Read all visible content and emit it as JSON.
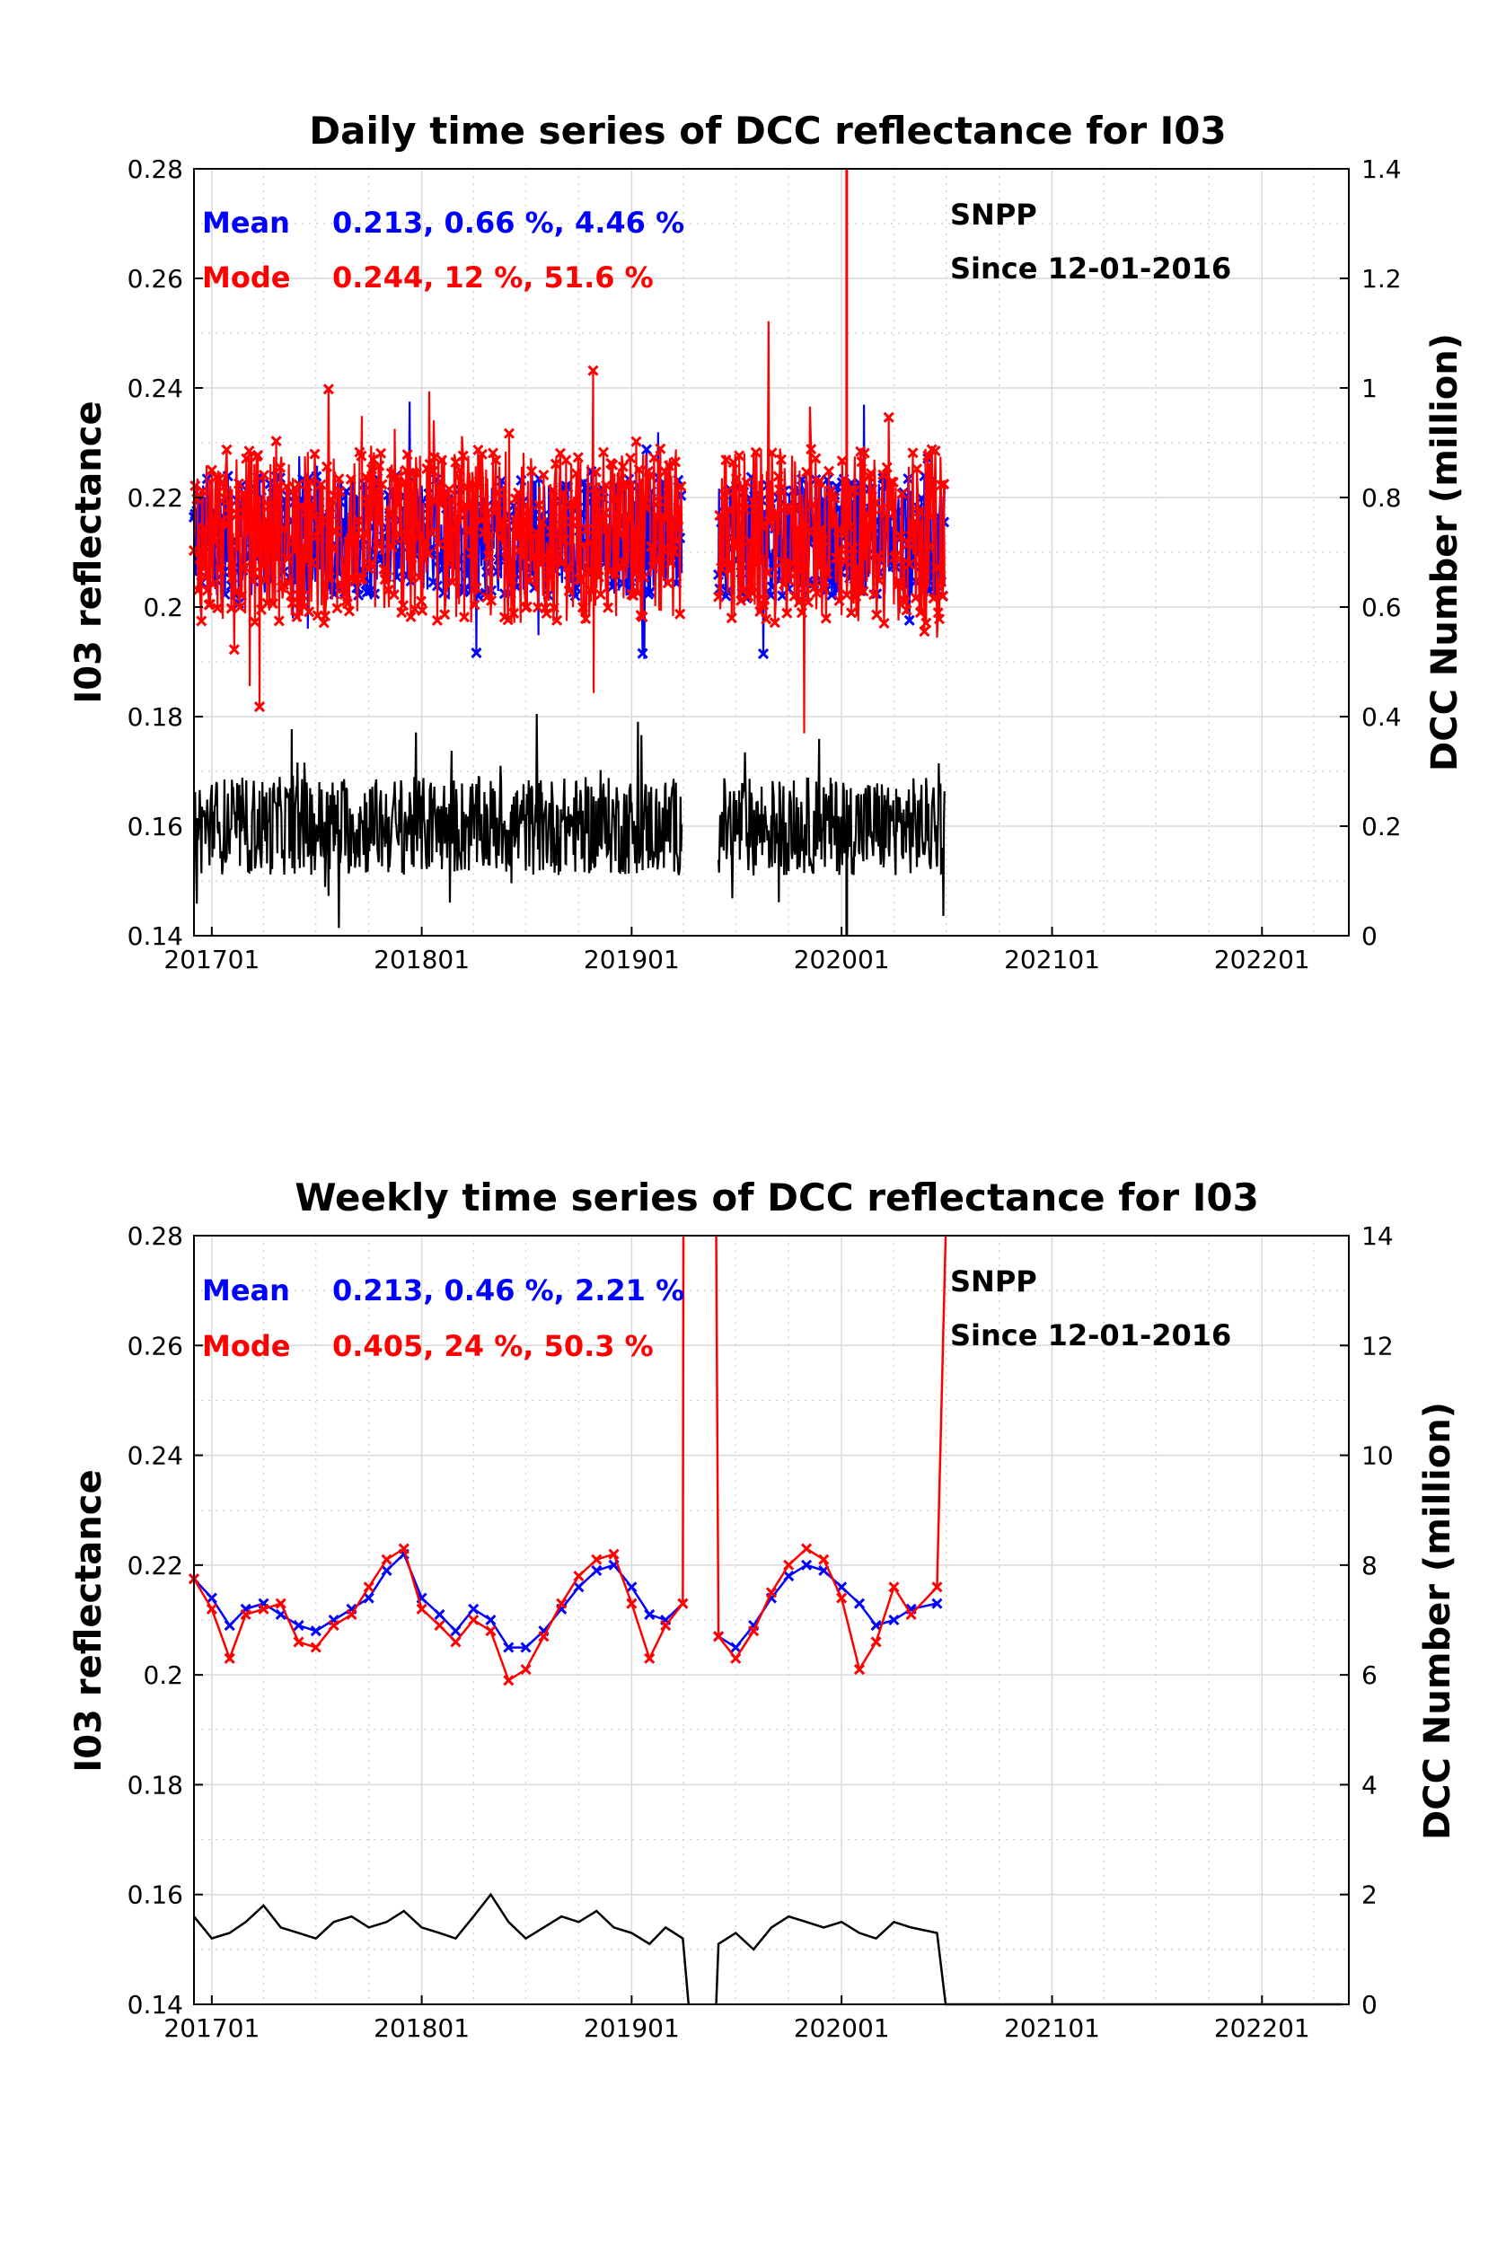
{
  "chart_data": [
    {
      "type": "line",
      "title": "Daily time series of DCC reflectance for I03",
      "ylabel": "I03 reflectance",
      "y2label": "DCC Number (million)",
      "ylim": [
        0.14,
        0.28
      ],
      "y2lim": [
        0,
        1.4
      ],
      "yticks": [
        "0.14",
        "0.16",
        "0.18",
        "0.2",
        "0.22",
        "0.24",
        "0.26",
        "0.28"
      ],
      "y2ticks": [
        "0",
        "0.2",
        "0.4",
        "0.6",
        "0.8",
        "1",
        "1.2",
        "1.4"
      ],
      "xlim": [
        "2016-12-01",
        "2022-06-01"
      ],
      "xticks": [
        "201701",
        "201801",
        "201901",
        "202001",
        "202101",
        "202201"
      ],
      "grid": true,
      "stats": {
        "mean_label": "Mean",
        "mean_values": "0.213, 0.66 %, 4.46 %",
        "mode_label": "Mode",
        "mode_values": "0.244, 12 %, 51.6 %"
      },
      "annotations": [
        "SNPP",
        "Since 12-01-2016"
      ],
      "series": [
        {
          "name": "Mean",
          "color": "#0000ff",
          "marker": "x",
          "axis": "left",
          "segments": [
            [
              "2016-12-01",
              "2019-03-31"
            ],
            [
              "2019-06-01",
              "2020-06-30"
            ]
          ],
          "base": 0.213,
          "spread": 0.011
        },
        {
          "name": "Mode",
          "color": "#ff0000",
          "marker": "x",
          "axis": "left",
          "segments": [
            [
              "2016-12-01",
              "2019-03-31"
            ],
            [
              "2019-06-01",
              "2020-06-30"
            ]
          ],
          "base": 0.213,
          "spread": 0.016,
          "spikes": [
            {
              "date": "2020-01-10",
              "value": 0.28,
              "to_bottom": false
            }
          ]
        },
        {
          "name": "DCC Number",
          "color": "#000000",
          "axis": "right",
          "segments": [
            [
              "2016-12-01",
              "2019-03-31"
            ],
            [
              "2019-06-01",
              "2020-06-30"
            ]
          ],
          "base": 0.2,
          "spread": 0.09,
          "spikes": [
            {
              "date": "2020-01-10",
              "value": 0.0
            }
          ]
        }
      ]
    },
    {
      "type": "line",
      "title": "Weekly time series of DCC reflectance for I03",
      "ylabel": "I03 reflectance",
      "y2label": "DCC Number (million)",
      "ylim": [
        0.14,
        0.28
      ],
      "y2lim": [
        0,
        14
      ],
      "yticks": [
        "0.14",
        "0.16",
        "0.18",
        "0.2",
        "0.22",
        "0.24",
        "0.26",
        "0.28"
      ],
      "y2ticks": [
        "0",
        "2",
        "4",
        "6",
        "8",
        "10",
        "12",
        "14"
      ],
      "xlim": [
        "2016-12-01",
        "2022-06-01"
      ],
      "xticks": [
        "201701",
        "201801",
        "201901",
        "202001",
        "202101",
        "202201"
      ],
      "grid": true,
      "stats": {
        "mean_label": "Mean",
        "mean_values": "0.213, 0.46 %, 2.21 %",
        "mode_label": "Mode",
        "mode_values": "0.405, 24 %, 50.3 %"
      },
      "annotations": [
        "SNPP",
        "Since 12-01-2016"
      ],
      "series": [
        {
          "name": "Mean",
          "color": "#0000ff",
          "marker": "x",
          "axis": "left",
          "points": [
            [
              "2016-12-01",
              0.2175
            ],
            [
              "2017-01-01",
              0.214
            ],
            [
              "2017-02-01",
              0.209
            ],
            [
              "2017-03-01",
              0.212
            ],
            [
              "2017-04-01",
              0.213
            ],
            [
              "2017-05-01",
              0.211
            ],
            [
              "2017-06-01",
              0.209
            ],
            [
              "2017-07-01",
              0.208
            ],
            [
              "2017-08-01",
              0.21
            ],
            [
              "2017-09-01",
              0.212
            ],
            [
              "2017-10-01",
              0.214
            ],
            [
              "2017-11-01",
              0.219
            ],
            [
              "2017-12-01",
              0.222
            ],
            [
              "2018-01-01",
              0.214
            ],
            [
              "2018-02-01",
              0.211
            ],
            [
              "2018-03-01",
              0.208
            ],
            [
              "2018-04-01",
              0.212
            ],
            [
              "2018-05-01",
              0.21
            ],
            [
              "2018-06-01",
              0.205
            ],
            [
              "2018-07-01",
              0.205
            ],
            [
              "2018-08-01",
              0.208
            ],
            [
              "2018-09-01",
              0.212
            ],
            [
              "2018-10-01",
              0.216
            ],
            [
              "2018-11-01",
              0.219
            ],
            [
              "2018-12-01",
              0.22
            ],
            [
              "2019-01-01",
              0.216
            ],
            [
              "2019-02-01",
              0.211
            ],
            [
              "2019-03-01",
              0.21
            ],
            [
              "2019-03-31",
              0.213
            ],
            [
              null,
              null
            ],
            [
              "2019-06-01",
              0.207
            ],
            [
              "2019-07-01",
              0.205
            ],
            [
              "2019-08-01",
              0.209
            ],
            [
              "2019-09-01",
              0.214
            ],
            [
              "2019-10-01",
              0.218
            ],
            [
              "2019-11-01",
              0.22
            ],
            [
              "2019-12-01",
              0.219
            ],
            [
              "2020-01-01",
              0.216
            ],
            [
              "2020-02-01",
              0.213
            ],
            [
              "2020-03-01",
              0.209
            ],
            [
              "2020-04-01",
              0.21
            ],
            [
              "2020-05-01",
              0.212
            ],
            [
              "2020-06-15",
              0.213
            ]
          ]
        },
        {
          "name": "Mode",
          "color": "#ff0000",
          "marker": "x",
          "axis": "left",
          "points": [
            [
              "2016-12-01",
              0.2175
            ],
            [
              "2017-01-01",
              0.212
            ],
            [
              "2017-02-01",
              0.203
            ],
            [
              "2017-03-01",
              0.211
            ],
            [
              "2017-04-01",
              0.212
            ],
            [
              "2017-05-01",
              0.213
            ],
            [
              "2017-06-01",
              0.206
            ],
            [
              "2017-07-01",
              0.205
            ],
            [
              "2017-08-01",
              0.209
            ],
            [
              "2017-09-01",
              0.211
            ],
            [
              "2017-10-01",
              0.216
            ],
            [
              "2017-11-01",
              0.221
            ],
            [
              "2017-12-01",
              0.223
            ],
            [
              "2018-01-01",
              0.212
            ],
            [
              "2018-02-01",
              0.209
            ],
            [
              "2018-03-01",
              0.206
            ],
            [
              "2018-04-01",
              0.21
            ],
            [
              "2018-05-01",
              0.208
            ],
            [
              "2018-06-01",
              0.199
            ],
            [
              "2018-07-01",
              0.201
            ],
            [
              "2018-08-01",
              0.207
            ],
            [
              "2018-09-01",
              0.213
            ],
            [
              "2018-10-01",
              0.218
            ],
            [
              "2018-11-01",
              0.221
            ],
            [
              "2018-12-01",
              0.222
            ],
            [
              "2019-01-01",
              0.213
            ],
            [
              "2019-02-01",
              0.203
            ],
            [
              "2019-03-01",
              0.209
            ],
            [
              "2019-03-31",
              0.213
            ],
            [
              "2019-04-01",
              0.28
            ],
            [
              null,
              null
            ],
            [
              "2019-05-28",
              0.28
            ],
            [
              "2019-06-01",
              0.207
            ],
            [
              "2019-07-01",
              0.203
            ],
            [
              "2019-08-01",
              0.208
            ],
            [
              "2019-09-01",
              0.215
            ],
            [
              "2019-10-01",
              0.22
            ],
            [
              "2019-11-01",
              0.223
            ],
            [
              "2019-12-01",
              0.221
            ],
            [
              "2020-01-01",
              0.214
            ],
            [
              "2020-02-01",
              0.201
            ],
            [
              "2020-03-01",
              0.206
            ],
            [
              "2020-04-01",
              0.216
            ],
            [
              "2020-05-01",
              0.211
            ],
            [
              "2020-06-15",
              0.216
            ],
            [
              "2020-06-30",
              0.28
            ]
          ]
        },
        {
          "name": "DCC Number",
          "color": "#000000",
          "axis": "right",
          "points": [
            [
              "2016-12-01",
              1.6
            ],
            [
              "2017-01-01",
              1.2
            ],
            [
              "2017-02-01",
              1.3
            ],
            [
              "2017-03-01",
              1.5
            ],
            [
              "2017-04-01",
              1.8
            ],
            [
              "2017-05-01",
              1.4
            ],
            [
              "2017-06-01",
              1.3
            ],
            [
              "2017-07-01",
              1.2
            ],
            [
              "2017-08-01",
              1.5
            ],
            [
              "2017-09-01",
              1.6
            ],
            [
              "2017-10-01",
              1.4
            ],
            [
              "2017-11-01",
              1.5
            ],
            [
              "2017-12-01",
              1.7
            ],
            [
              "2018-01-01",
              1.4
            ],
            [
              "2018-02-01",
              1.3
            ],
            [
              "2018-03-01",
              1.2
            ],
            [
              "2018-04-01",
              1.6
            ],
            [
              "2018-05-01",
              2.0
            ],
            [
              "2018-06-01",
              1.5
            ],
            [
              "2018-07-01",
              1.2
            ],
            [
              "2018-08-01",
              1.4
            ],
            [
              "2018-09-01",
              1.6
            ],
            [
              "2018-10-01",
              1.5
            ],
            [
              "2018-11-01",
              1.7
            ],
            [
              "2018-12-01",
              1.4
            ],
            [
              "2019-01-01",
              1.3
            ],
            [
              "2019-02-01",
              1.1
            ],
            [
              "2019-03-01",
              1.4
            ],
            [
              "2019-03-31",
              1.2
            ],
            [
              "2019-04-10",
              0
            ],
            [
              null,
              null
            ],
            [
              "2019-05-28",
              0
            ],
            [
              "2019-06-01",
              1.1
            ],
            [
              "2019-07-01",
              1.3
            ],
            [
              "2019-08-01",
              1.0
            ],
            [
              "2019-09-01",
              1.4
            ],
            [
              "2019-10-01",
              1.6
            ],
            [
              "2019-11-01",
              1.5
            ],
            [
              "2019-12-01",
              1.4
            ],
            [
              "2020-01-01",
              1.5
            ],
            [
              "2020-02-01",
              1.3
            ],
            [
              "2020-03-01",
              1.2
            ],
            [
              "2020-04-01",
              1.5
            ],
            [
              "2020-05-01",
              1.4
            ],
            [
              "2020-06-15",
              1.3
            ],
            [
              "2020-06-30",
              0
            ],
            [
              "2022-05-20",
              0
            ]
          ]
        }
      ]
    }
  ]
}
